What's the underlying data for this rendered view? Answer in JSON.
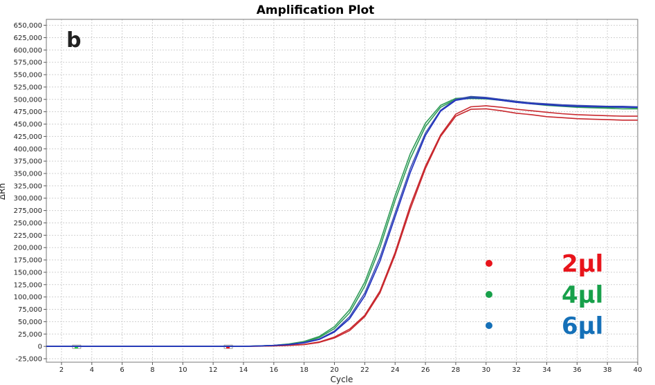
{
  "chart_data": {
    "type": "line",
    "title": "Amplification Plot",
    "panel_label": "b",
    "xlabel": "Cycle",
    "ylabel": "ΔRn",
    "xlim": [
      1,
      40
    ],
    "ylim": [
      -32000,
      662000
    ],
    "x_ticks": [
      2,
      4,
      6,
      8,
      10,
      12,
      14,
      16,
      18,
      20,
      22,
      24,
      26,
      28,
      30,
      32,
      34,
      36,
      38,
      40
    ],
    "y_ticks": [
      -25000,
      0,
      25000,
      50000,
      75000,
      100000,
      125000,
      150000,
      175000,
      200000,
      225000,
      250000,
      275000,
      300000,
      325000,
      350000,
      375000,
      400000,
      425000,
      450000,
      475000,
      500000,
      525000,
      550000,
      575000,
      600000,
      625000,
      650000
    ],
    "y_tick_labels": [
      "-25,000",
      "0",
      "25,000",
      "50,000",
      "75,000",
      "100,000",
      "125,000",
      "150,000",
      "175,000",
      "200,000",
      "225,000",
      "250,000",
      "275,000",
      "300,000",
      "325,000",
      "350,000",
      "375,000",
      "400,000",
      "425,000",
      "450,000",
      "475,000",
      "500,000",
      "525,000",
      "550,000",
      "575,000",
      "600,000",
      "625,000",
      "650,000"
    ],
    "grid": true,
    "legend_position": "bottom-right",
    "legend": [
      {
        "label": "2µl",
        "color": "#e8141b"
      },
      {
        "label": "4µl",
        "color": "#17a04a"
      },
      {
        "label": "6µl",
        "color": "#1570b8"
      }
    ],
    "series": [
      {
        "group": "2µl",
        "color": "#c8282e",
        "x": [
          1,
          2,
          3,
          4,
          5,
          6,
          7,
          8,
          9,
          10,
          11,
          12,
          13,
          14,
          15,
          16,
          17,
          18,
          19,
          20,
          21,
          22,
          23,
          24,
          25,
          26,
          27,
          28,
          29,
          30,
          31,
          32,
          33,
          34,
          35,
          36,
          37,
          38,
          39,
          40
        ],
        "y": [
          0,
          0,
          0,
          0,
          0,
          0,
          0,
          0,
          0,
          0,
          0,
          0,
          0,
          0,
          500,
          1000,
          2000,
          4000,
          9000,
          19000,
          35000,
          63000,
          112000,
          190000,
          285000,
          365000,
          428000,
          470000,
          485000,
          487000,
          484000,
          480000,
          477000,
          474000,
          471000,
          469000,
          468000,
          467000,
          466000,
          466000
        ]
      },
      {
        "group": "2µl",
        "color": "#c8282e",
        "x": [
          1,
          2,
          3,
          4,
          5,
          6,
          7,
          8,
          9,
          10,
          11,
          12,
          13,
          14,
          15,
          16,
          17,
          18,
          19,
          20,
          21,
          22,
          23,
          24,
          25,
          26,
          27,
          28,
          29,
          30,
          31,
          32,
          33,
          34,
          35,
          36,
          37,
          38,
          39,
          40
        ],
        "y": [
          0,
          0,
          0,
          0,
          0,
          0,
          0,
          0,
          0,
          0,
          0,
          0,
          0,
          0,
          500,
          1000,
          2000,
          3500,
          8000,
          17000,
          32000,
          60000,
          108000,
          185000,
          278000,
          360000,
          425000,
          466000,
          480000,
          481000,
          477000,
          472000,
          469000,
          465000,
          463000,
          461000,
          460000,
          459000,
          458000,
          458000
        ]
      },
      {
        "group": "4µl",
        "color": "#2e9b57",
        "x": [
          1,
          2,
          3,
          4,
          5,
          6,
          7,
          8,
          9,
          10,
          11,
          12,
          13,
          14,
          15,
          16,
          17,
          18,
          19,
          20,
          21,
          22,
          23,
          24,
          25,
          26,
          27,
          28,
          29,
          30,
          31,
          32,
          33,
          34,
          35,
          36,
          37,
          38,
          39,
          40
        ],
        "y": [
          0,
          0,
          0,
          0,
          0,
          0,
          0,
          0,
          0,
          0,
          0,
          0,
          0,
          0,
          1000,
          2000,
          5000,
          10000,
          20000,
          40000,
          74000,
          130000,
          210000,
          305000,
          390000,
          452000,
          488000,
          502000,
          504000,
          503000,
          500000,
          496000,
          493000,
          490000,
          488000,
          486000,
          485000,
          484000,
          484000,
          483000
        ]
      },
      {
        "group": "4µl",
        "color": "#2e9b57",
        "x": [
          1,
          2,
          3,
          4,
          5,
          6,
          7,
          8,
          9,
          10,
          11,
          12,
          13,
          14,
          15,
          16,
          17,
          18,
          19,
          20,
          21,
          22,
          23,
          24,
          25,
          26,
          27,
          28,
          29,
          30,
          31,
          32,
          33,
          34,
          35,
          36,
          37,
          38,
          39,
          40
        ],
        "y": [
          0,
          0,
          0,
          0,
          0,
          0,
          0,
          0,
          0,
          0,
          0,
          0,
          0,
          0,
          1000,
          2000,
          4500,
          9000,
          18000,
          36000,
          68000,
          122000,
          200000,
          295000,
          380000,
          445000,
          484000,
          500000,
          502000,
          501000,
          498000,
          494000,
          491000,
          488000,
          486000,
          484000,
          483000,
          482000,
          481000,
          481000
        ]
      },
      {
        "group": "6µl",
        "color": "#3c4fb0",
        "x": [
          1,
          2,
          3,
          4,
          5,
          6,
          7,
          8,
          9,
          10,
          11,
          12,
          13,
          14,
          15,
          16,
          17,
          18,
          19,
          20,
          21,
          22,
          23,
          24,
          25,
          26,
          27,
          28,
          29,
          30,
          31,
          32,
          33,
          34,
          35,
          36,
          37,
          38,
          39,
          40
        ],
        "y": [
          0,
          0,
          0,
          0,
          0,
          0,
          0,
          0,
          0,
          0,
          0,
          0,
          0,
          0,
          800,
          2000,
          4000,
          8000,
          15000,
          31000,
          60000,
          108000,
          180000,
          270000,
          360000,
          432000,
          478000,
          500000,
          506000,
          504000,
          500000,
          496000,
          493000,
          491000,
          489000,
          488000,
          487000,
          486000,
          486000,
          485000
        ]
      },
      {
        "group": "6µl",
        "color": "#1f2fc0",
        "x": [
          1,
          2,
          3,
          4,
          5,
          6,
          7,
          8,
          9,
          10,
          11,
          12,
          13,
          14,
          15,
          16,
          17,
          18,
          19,
          20,
          21,
          22,
          23,
          24,
          25,
          26,
          27,
          28,
          29,
          30,
          31,
          32,
          33,
          34,
          35,
          36,
          37,
          38,
          39,
          40
        ],
        "y": [
          0,
          0,
          0,
          0,
          0,
          0,
          0,
          0,
          0,
          0,
          0,
          0,
          0,
          0,
          800,
          2000,
          3500,
          7000,
          14000,
          29000,
          56000,
          102000,
          172000,
          262000,
          352000,
          427000,
          476000,
          498000,
          503000,
          502000,
          498000,
          494000,
          491000,
          489000,
          487000,
          486000,
          485000,
          485000,
          484000,
          484000
        ]
      }
    ]
  }
}
